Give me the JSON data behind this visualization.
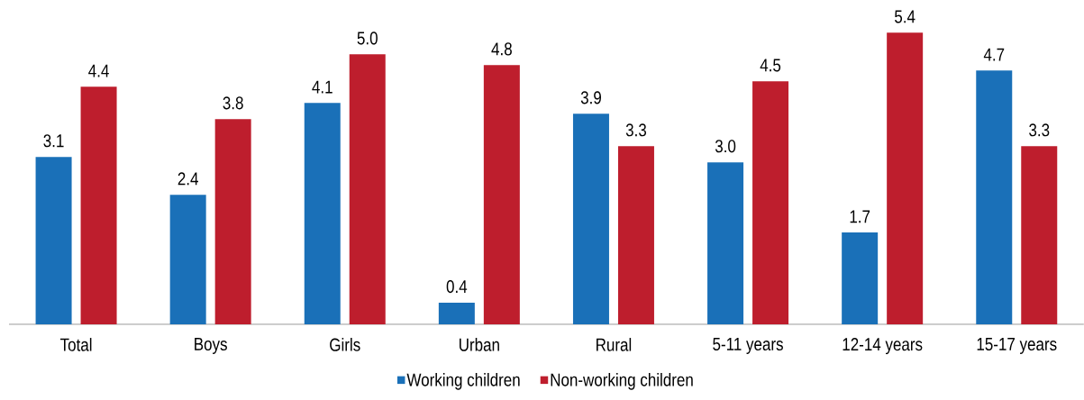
{
  "chart_data": {
    "type": "bar",
    "categories": [
      "Total",
      "Boys",
      "Girls",
      "Urban",
      "Rural",
      "5-11 years",
      "12-14 years",
      "15-17 years"
    ],
    "series": [
      {
        "name": "Working children",
        "color": "#1a70b8",
        "values": [
          3.1,
          2.4,
          4.1,
          0.4,
          3.9,
          3.0,
          1.7,
          4.7
        ],
        "value_labels": [
          "3.1",
          "2.4",
          "4.1",
          "0.4",
          "3.9",
          "3.0",
          "1.7",
          "4.7"
        ]
      },
      {
        "name": "Non-working children",
        "color": "#be1e2d",
        "values": [
          4.4,
          3.8,
          5.0,
          4.8,
          3.3,
          4.5,
          5.4,
          3.3
        ],
        "value_labels": [
          "4.4",
          "3.8",
          "5.0",
          "4.8",
          "3.3",
          "4.5",
          "5.4",
          "3.3"
        ]
      }
    ],
    "legend": "bottom",
    "tick_labels": "x"
  }
}
